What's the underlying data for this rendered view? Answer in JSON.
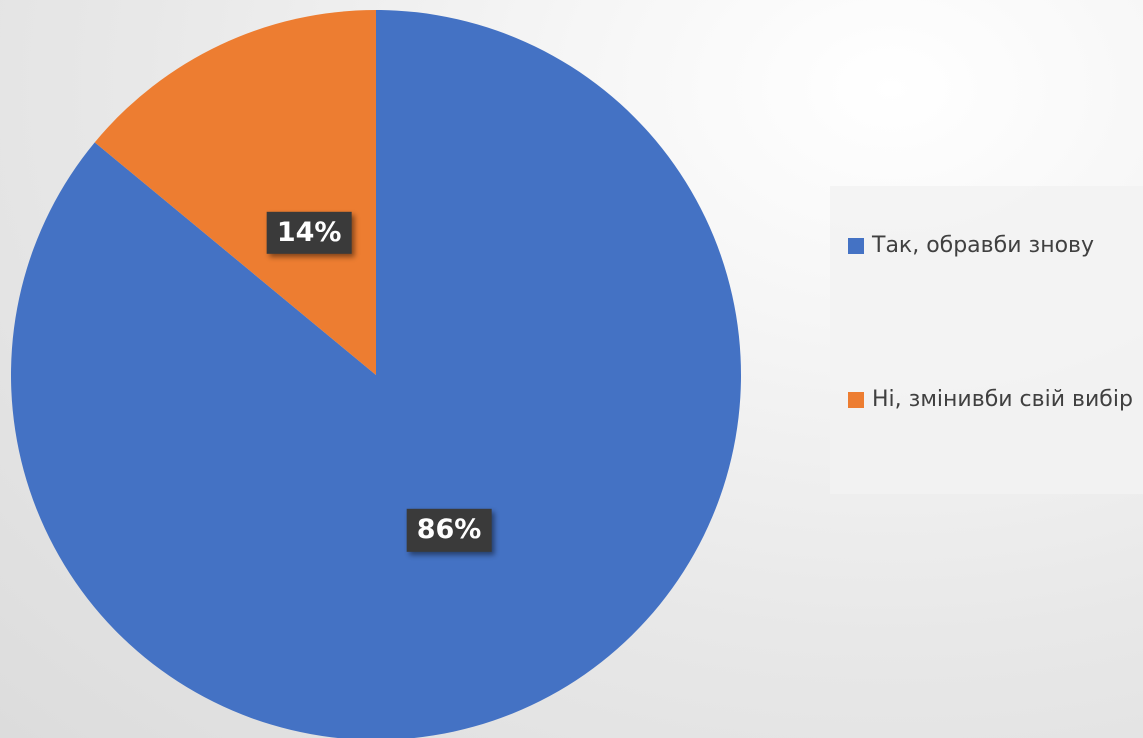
{
  "chart_data": {
    "type": "pie",
    "title": "",
    "slices": [
      {
        "label": "Так, обравби знову",
        "value": 86,
        "display": "86%",
        "color": "#4472C4"
      },
      {
        "label": "Ні, змінивби свій вибір",
        "value": 14,
        "display": "14%",
        "color": "#ED7D31"
      }
    ],
    "start_angle_deg": 0,
    "direction": "clockwise",
    "legend_position": "right"
  }
}
